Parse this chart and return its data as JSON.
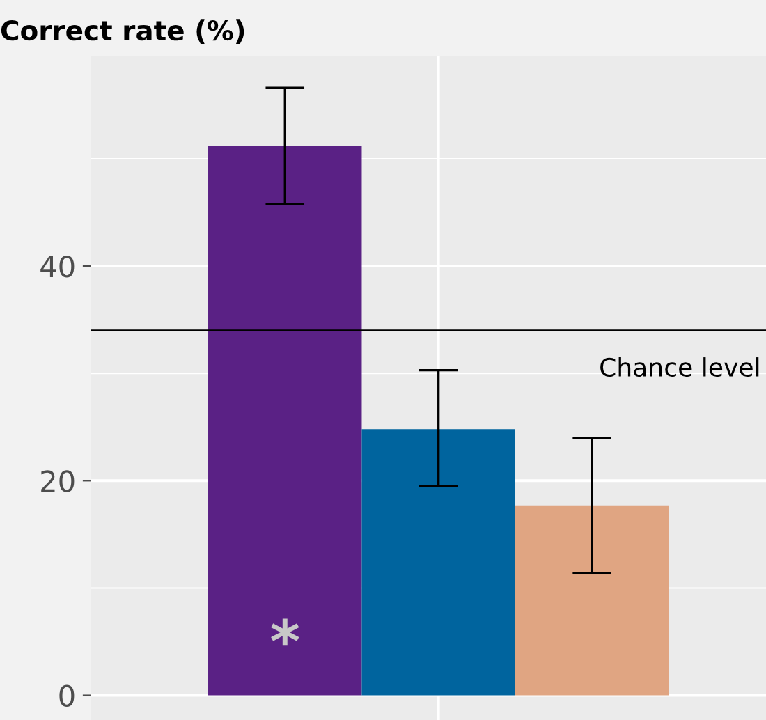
{
  "chart_data": {
    "type": "bar",
    "title": "Correct rate (%)",
    "categories": [
      null
    ],
    "series": [
      {
        "color": "#5a2185",
        "values": [
          51.2
        ],
        "errors": [
          [
            45.8,
            56.6
          ]
        ]
      },
      {
        "color": "#00649e",
        "values": [
          24.8
        ],
        "errors": [
          [
            19.5,
            30.3
          ]
        ]
      },
      {
        "color": "#e0a582",
        "values": [
          17.7
        ],
        "errors": [
          [
            11.4,
            24.0
          ]
        ]
      }
    ],
    "ylim": [
      -2.3,
      59.6
    ],
    "yticks": [
      0,
      20,
      40
    ],
    "grid": true,
    "legend": false,
    "tick_labels": "y",
    "ref_lines": [
      {
        "axis": "y",
        "value": 34.0,
        "label": "Chance level",
        "color": "#000000"
      }
    ],
    "annotations": [
      "*"
    ]
  }
}
